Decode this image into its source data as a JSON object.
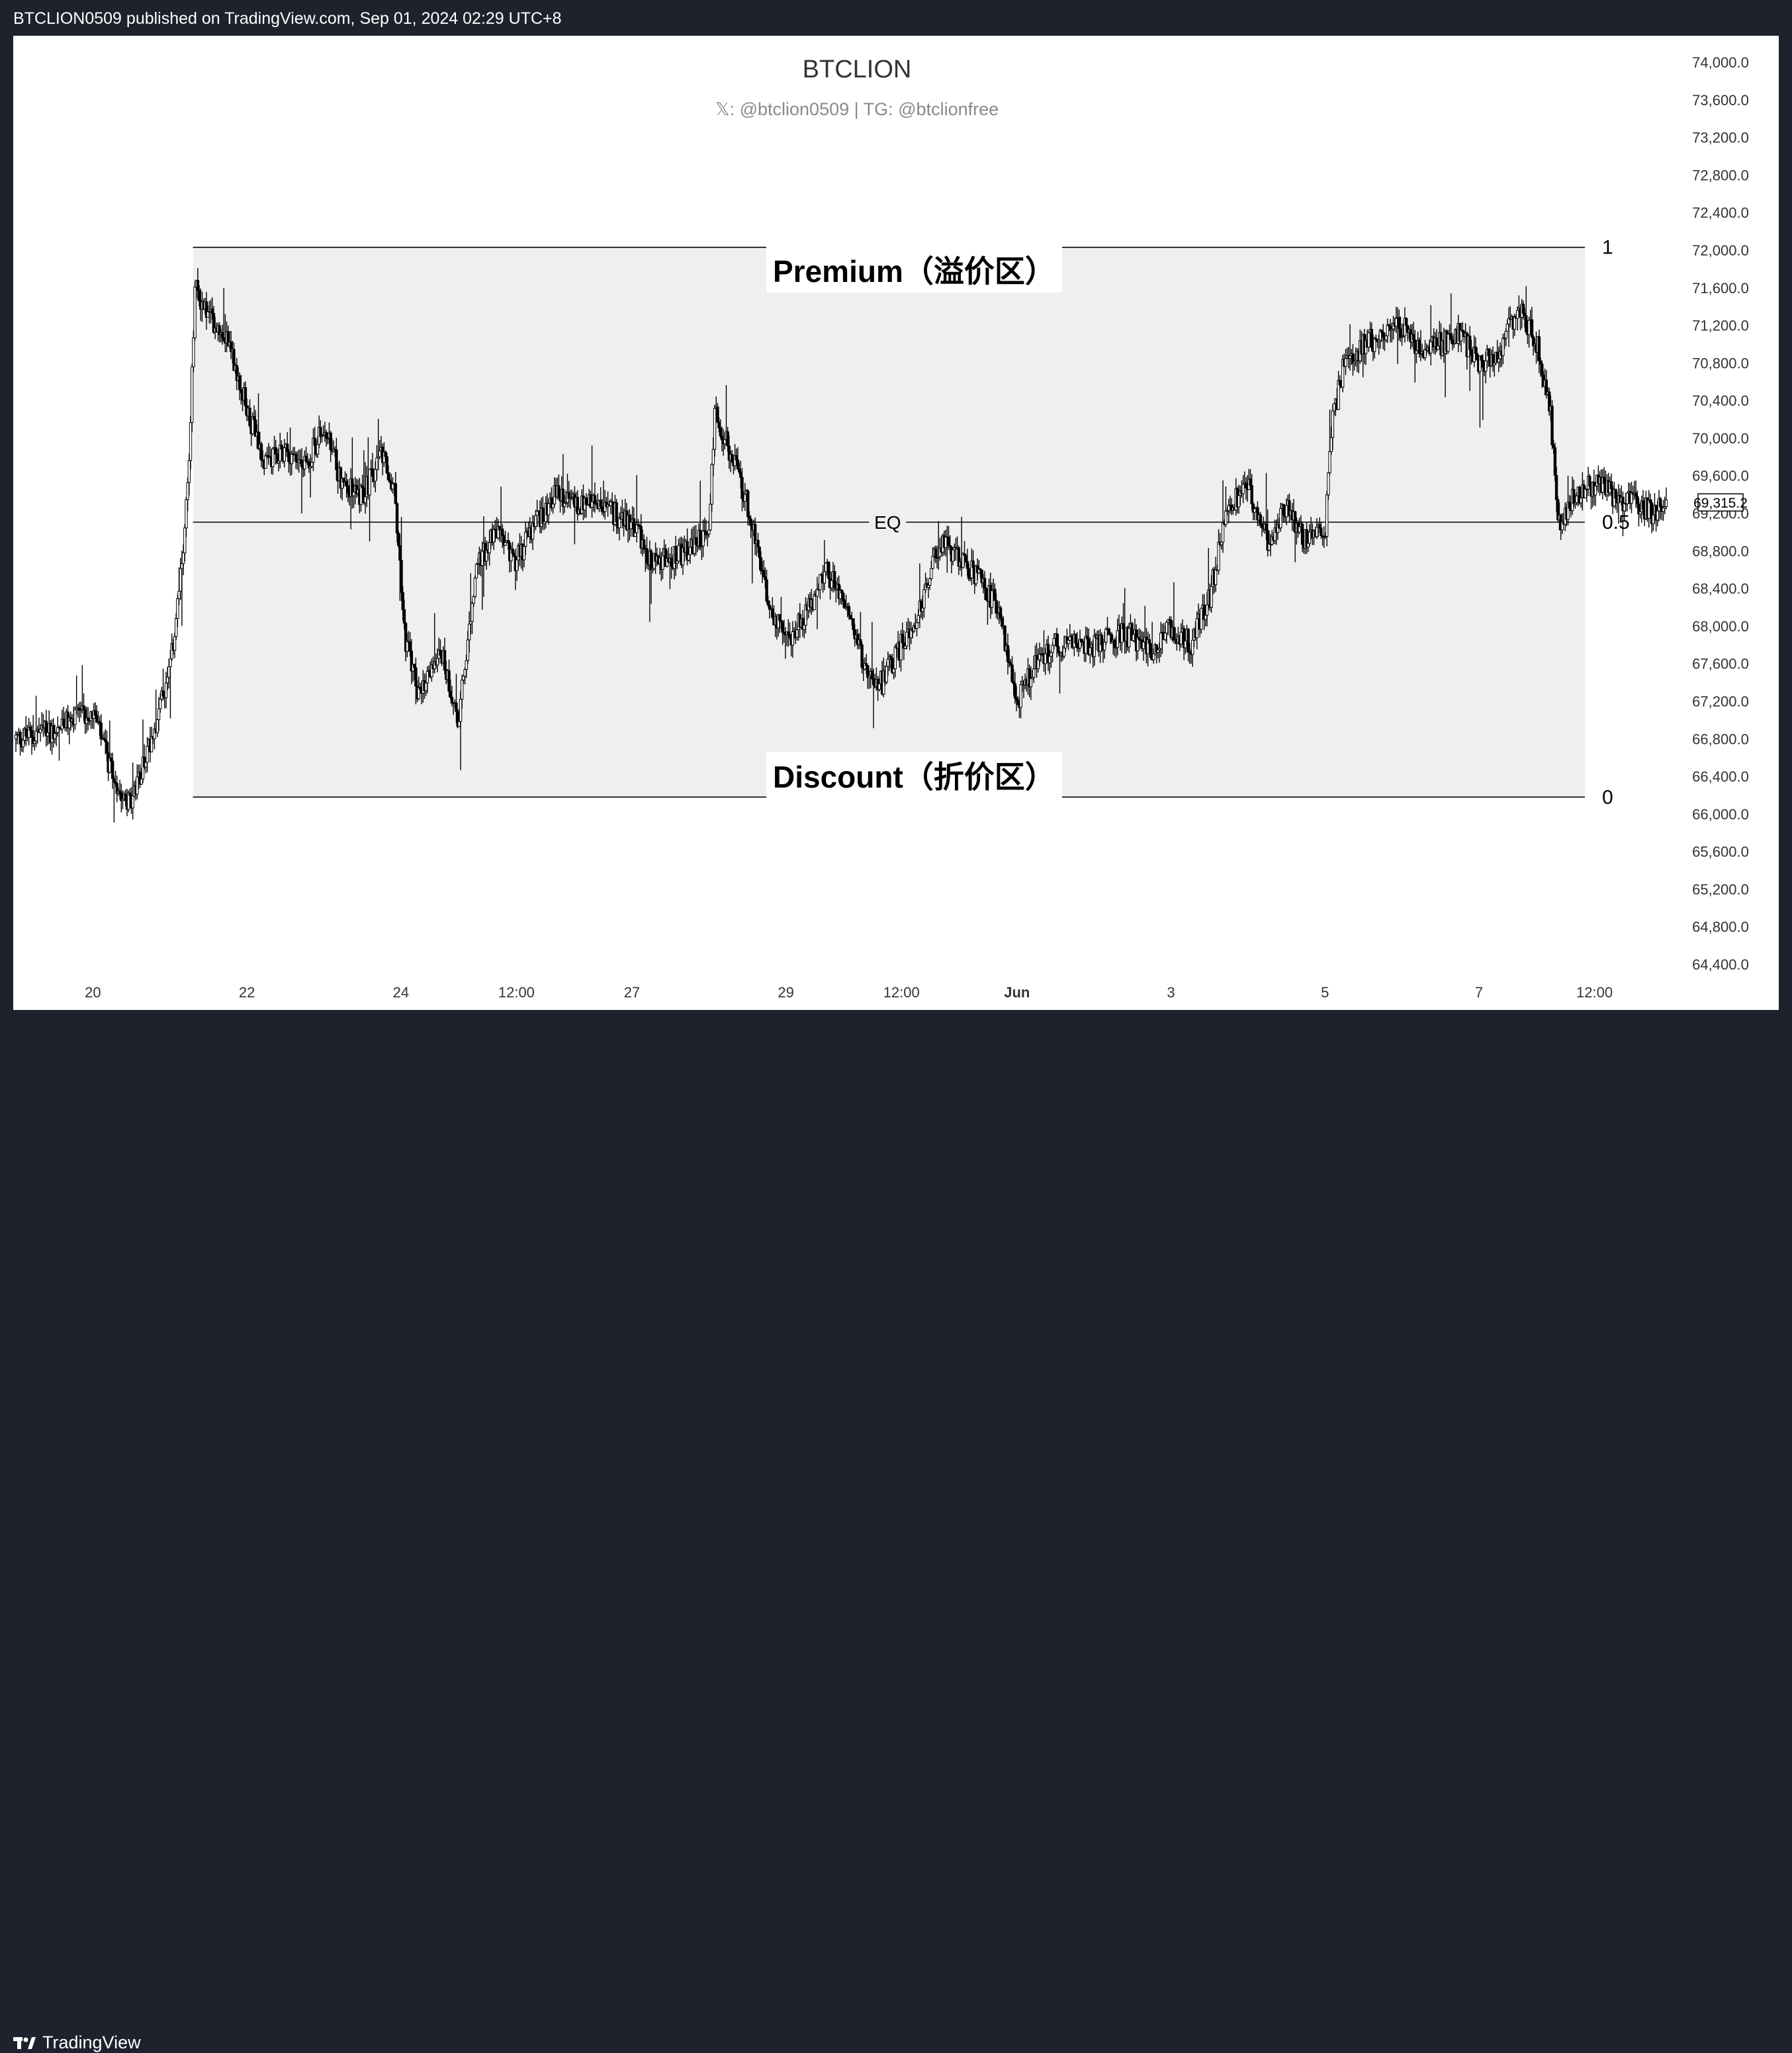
{
  "header": {
    "published_text": "BTCLION0509 published on TradingView.com, Sep 01, 2024 02:29 UTC+8"
  },
  "chart_title": "BTCLION",
  "chart_subtitle": "𝕏: @btclion0509 | TG: @btclionfree",
  "footer": {
    "brand": "TradingView"
  },
  "colors": {
    "background": "#1e222d",
    "panel": "#ffffff",
    "zone_fill": "#efefef",
    "candle": "#000000"
  },
  "chart_data": {
    "type": "candlestick",
    "title": "BTCLION",
    "ylim": [
      64000,
      74500
    ],
    "y_ticks": [
      "74,000.0",
      "73,600.0",
      "73,200.0",
      "72,800.0",
      "72,400.0",
      "72,000.0",
      "71,600.0",
      "71,200.0",
      "70,800.0",
      "70,400.0",
      "70,000.0",
      "69,600.0",
      "69,200.0",
      "68,800.0",
      "68,400.0",
      "68,000.0",
      "67,600.0",
      "67,200.0",
      "66,800.0",
      "66,400.0",
      "66,000.0",
      "65,600.0",
      "65,200.0",
      "64,800.0",
      "64,400.0"
    ],
    "y_tick_values": [
      74000,
      73600,
      73200,
      72800,
      72400,
      72000,
      71600,
      71200,
      70800,
      70400,
      70000,
      69600,
      69200,
      68800,
      68400,
      68000,
      67600,
      67200,
      66800,
      66400,
      66000,
      65600,
      65200,
      64800,
      64400
    ],
    "x_ticks": [
      "20",
      "22",
      "24",
      "12:00",
      "27",
      "29",
      "12:00",
      "Jun",
      "3",
      "5",
      "7",
      "12:00"
    ],
    "x_tick_index": [
      4,
      12,
      20,
      26,
      32,
      40,
      46,
      52,
      60,
      68,
      76,
      82
    ],
    "current_price_label": "69,315.2",
    "current_price": 69315.2,
    "fib_range": {
      "high": 72030,
      "low": 66180,
      "levels": [
        "1",
        "0.5",
        "0"
      ],
      "eq_label": "EQ",
      "start_index": 9.2,
      "end_index": 81.5
    },
    "zones": {
      "premium": "Premium（溢价区）",
      "discount": "Discount（折价区）"
    },
    "price_path": [
      [
        0,
        66800
      ],
      [
        2,
        66900
      ],
      [
        4,
        67100
      ],
      [
        5,
        66400
      ],
      [
        6,
        66100
      ],
      [
        7,
        66800
      ],
      [
        8,
        67500
      ],
      [
        8.6,
        68600
      ],
      [
        9.0,
        69700
      ],
      [
        9.3,
        71600
      ],
      [
        10,
        71300
      ],
      [
        11,
        71100
      ],
      [
        12,
        70300
      ],
      [
        13,
        69700
      ],
      [
        14,
        69900
      ],
      [
        15,
        69700
      ],
      [
        16,
        70100
      ],
      [
        17,
        69500
      ],
      [
        18,
        69400
      ],
      [
        19,
        69800
      ],
      [
        19.7,
        69400
      ],
      [
        20.2,
        67900
      ],
      [
        21,
        67200
      ],
      [
        22,
        67800
      ],
      [
        23,
        67000
      ],
      [
        24,
        68700
      ],
      [
        25,
        69000
      ],
      [
        26,
        68700
      ],
      [
        27,
        69100
      ],
      [
        28,
        69400
      ],
      [
        29,
        69300
      ],
      [
        30,
        69300
      ],
      [
        31,
        69200
      ],
      [
        32,
        69100
      ],
      [
        33,
        68700
      ],
      [
        34,
        68700
      ],
      [
        35,
        68800
      ],
      [
        36,
        69000
      ],
      [
        36.3,
        70300
      ],
      [
        37,
        69900
      ],
      [
        38,
        69300
      ],
      [
        39,
        68300
      ],
      [
        40,
        67800
      ],
      [
        41,
        68100
      ],
      [
        42,
        68600
      ],
      [
        43,
        68300
      ],
      [
        44,
        67600
      ],
      [
        45,
        67400
      ],
      [
        46,
        67800
      ],
      [
        47,
        68200
      ],
      [
        48,
        68900
      ],
      [
        49,
        68700
      ],
      [
        50,
        68500
      ],
      [
        51,
        68200
      ],
      [
        52,
        67200
      ],
      [
        53,
        67600
      ],
      [
        54,
        67800
      ],
      [
        55,
        67800
      ],
      [
        56,
        67800
      ],
      [
        57,
        67900
      ],
      [
        58,
        67900
      ],
      [
        59,
        67700
      ],
      [
        60,
        68000
      ],
      [
        61,
        67800
      ],
      [
        62,
        68300
      ],
      [
        63,
        69300
      ],
      [
        64,
        69500
      ],
      [
        65,
        68900
      ],
      [
        66,
        69300
      ],
      [
        67,
        68900
      ],
      [
        68,
        69000
      ],
      [
        68.4,
        70200
      ],
      [
        69,
        70800
      ],
      [
        70,
        71000
      ],
      [
        71,
        71100
      ],
      [
        72,
        71200
      ],
      [
        73,
        70900
      ],
      [
        74,
        71000
      ],
      [
        75,
        71100
      ],
      [
        76,
        70800
      ],
      [
        77,
        70900
      ],
      [
        78,
        71400
      ],
      [
        79,
        71000
      ],
      [
        79.7,
        70300
      ],
      [
        80.2,
        69000
      ],
      [
        81,
        69400
      ],
      [
        82,
        69500
      ],
      [
        83,
        69400
      ],
      [
        84,
        69300
      ],
      [
        85,
        69200
      ],
      [
        85.8,
        69315
      ]
    ]
  }
}
